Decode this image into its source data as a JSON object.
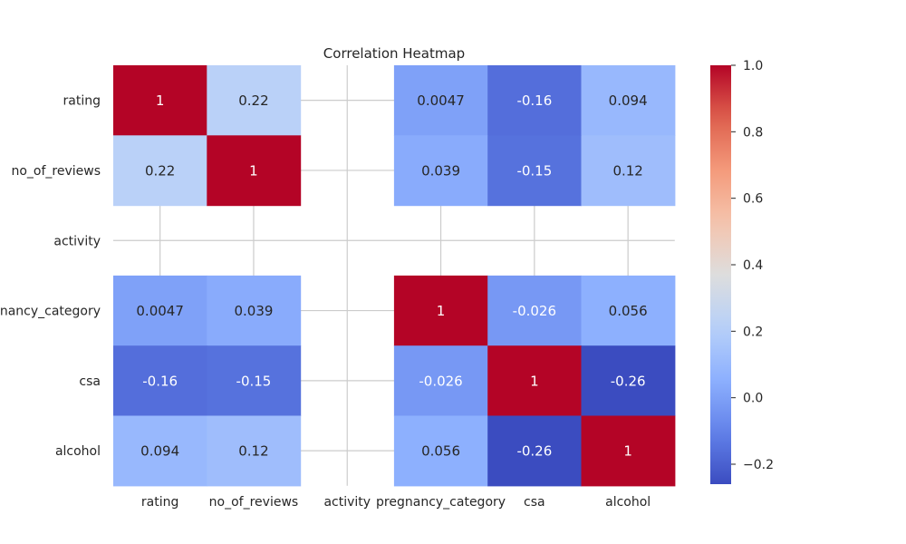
{
  "chart_data": {
    "type": "heatmap",
    "title": "Correlation Heatmap",
    "x_labels": [
      "rating",
      "no_of_reviews",
      "activity",
      "pregnancy_category",
      "csa",
      "alcohol"
    ],
    "y_labels": [
      "rating",
      "no_of_reviews",
      "activity",
      "pregnancy_category",
      "csa",
      "alcohol"
    ],
    "values": [
      [
        1,
        0.22,
        null,
        0.0047,
        -0.16,
        0.094
      ],
      [
        0.22,
        1,
        null,
        0.039,
        -0.15,
        0.12
      ],
      [
        null,
        null,
        null,
        null,
        null,
        null
      ],
      [
        0.0047,
        0.039,
        null,
        1,
        -0.026,
        0.056
      ],
      [
        -0.16,
        -0.15,
        null,
        -0.026,
        1,
        -0.26
      ],
      [
        0.094,
        0.12,
        null,
        0.056,
        -0.26,
        1
      ]
    ],
    "annotations": [
      [
        "1",
        "0.22",
        "",
        "0.0047",
        "-0.16",
        "0.094"
      ],
      [
        "0.22",
        "1",
        "",
        "0.039",
        "-0.15",
        "0.12"
      ],
      [
        "",
        "",
        "",
        "",
        "",
        ""
      ],
      [
        "0.0047",
        "0.039",
        "",
        "1",
        "-0.026",
        "0.056"
      ],
      [
        "-0.16",
        "-0.15",
        "",
        "-0.026",
        "1",
        "-0.26"
      ],
      [
        "0.094",
        "0.12",
        "",
        "0.056",
        "-0.26",
        "1"
      ]
    ],
    "colormap": "coolwarm",
    "vmin": -0.26,
    "vmax": 1.0,
    "colorbar_ticks": [
      "1.0",
      "0.8",
      "0.6",
      "0.4",
      "0.2",
      "0.0",
      "−0.2"
    ],
    "colorbar_tick_values": [
      1.0,
      0.8,
      0.6,
      0.4,
      0.2,
      0.0,
      -0.2
    ],
    "grid": true,
    "legend": "colorbar-right"
  }
}
